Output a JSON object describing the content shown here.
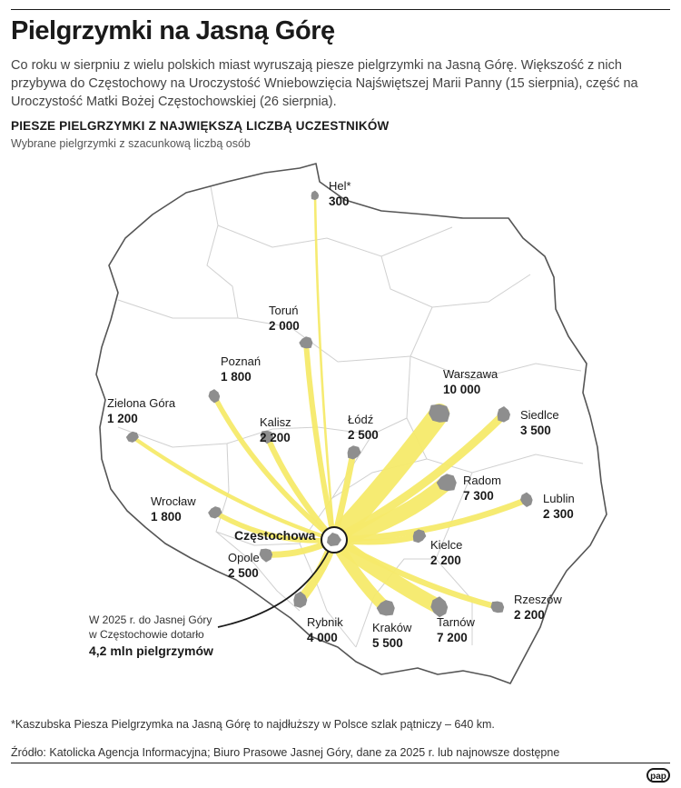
{
  "title": "Pielgrzymki na Jasną Górę",
  "intro": "Co roku w sierpniu z wielu polskich miast wyruszają piesze pielgrzymki na Jasną Górę. Większość z nich przybywa do Częstochowy na Uroczystość Wniebowzięcia Najświętszej Marii Panny (15 sierpnia), część na Uroczystość Matki Bożej Częstochowskiej (26 sierpnia).",
  "subtitle": "PIESZE PIELGRZYMKI Z NAJWIĘKSZĄ LICZBĄ UCZESTNIKÓW",
  "subsubtitle": "Wybrane pielgrzymki z szacunkową liczbą osób",
  "destination": {
    "name": "Częstochowa"
  },
  "annotation": {
    "line1": "W 2025 r. do Jasnej Góry",
    "line2": "w Częstochowie dotarło",
    "value": "4,2 mln pielgrzymów"
  },
  "colors": {
    "flow": "#f6ea6a",
    "city": "#8e8e8e",
    "border": "#d0d0d0",
    "outline": "#555555"
  },
  "cities": [
    {
      "name": "Hel*",
      "count": "300",
      "value": 300
    },
    {
      "name": "Toruń",
      "count": "2 000",
      "value": 2000
    },
    {
      "name": "Poznań",
      "count": "1 800",
      "value": 1800
    },
    {
      "name": "Zielona Góra",
      "count": "1 200",
      "value": 1200
    },
    {
      "name": "Kalisz",
      "count": "2 200",
      "value": 2200
    },
    {
      "name": "Łódź",
      "count": "2 500",
      "value": 2500
    },
    {
      "name": "Warszawa",
      "count": "10 000",
      "value": 10000
    },
    {
      "name": "Siedlce",
      "count": "3 500",
      "value": 3500
    },
    {
      "name": "Radom",
      "count": "7 300",
      "value": 7300
    },
    {
      "name": "Lublin",
      "count": "2 300",
      "value": 2300
    },
    {
      "name": "Wrocław",
      "count": "1 800",
      "value": 1800
    },
    {
      "name": "Opole",
      "count": "2 500",
      "value": 2500
    },
    {
      "name": "Kielce",
      "count": "2 200",
      "value": 2200
    },
    {
      "name": "Rzeszów",
      "count": "2 200",
      "value": 2200
    },
    {
      "name": "Rybnik",
      "count": "4 000",
      "value": 4000
    },
    {
      "name": "Kraków",
      "count": "5 500",
      "value": 5500
    },
    {
      "name": "Tarnów",
      "count": "7 200",
      "value": 7200
    }
  ],
  "footnote": "*Kaszubska Piesza Pielgrzymka na Jasną Górę to najdłuższy w Polsce szlak pątniczy – 640 km.",
  "source": "Źródło: Katolicka Agencja Informacyjna; Biuro Prasowe Jasnej Góry, dane za 2025 r. lub najnowsze dostępne",
  "logo": "pap"
}
